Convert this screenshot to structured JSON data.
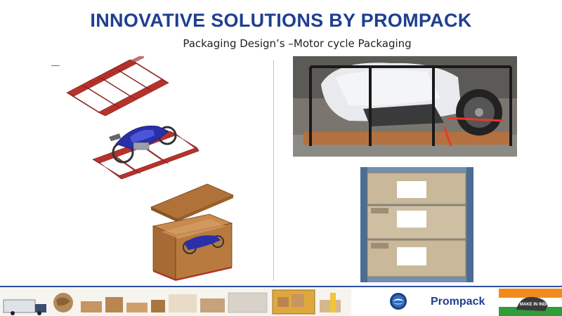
{
  "header": {
    "title": "INNOVATIVE SOLUTIONS BY PROMPACK",
    "subtitle": "Packaging Design’s –Motor cycle Packaging"
  },
  "footer": {
    "brand": "Prompack",
    "badge_text": "MAKE IN INDIA"
  },
  "colors": {
    "title": "#1f3f8f",
    "frame_red": "#b8322c",
    "crate_brown": "#a86a35",
    "bike_blue": "#2a2fa8"
  }
}
